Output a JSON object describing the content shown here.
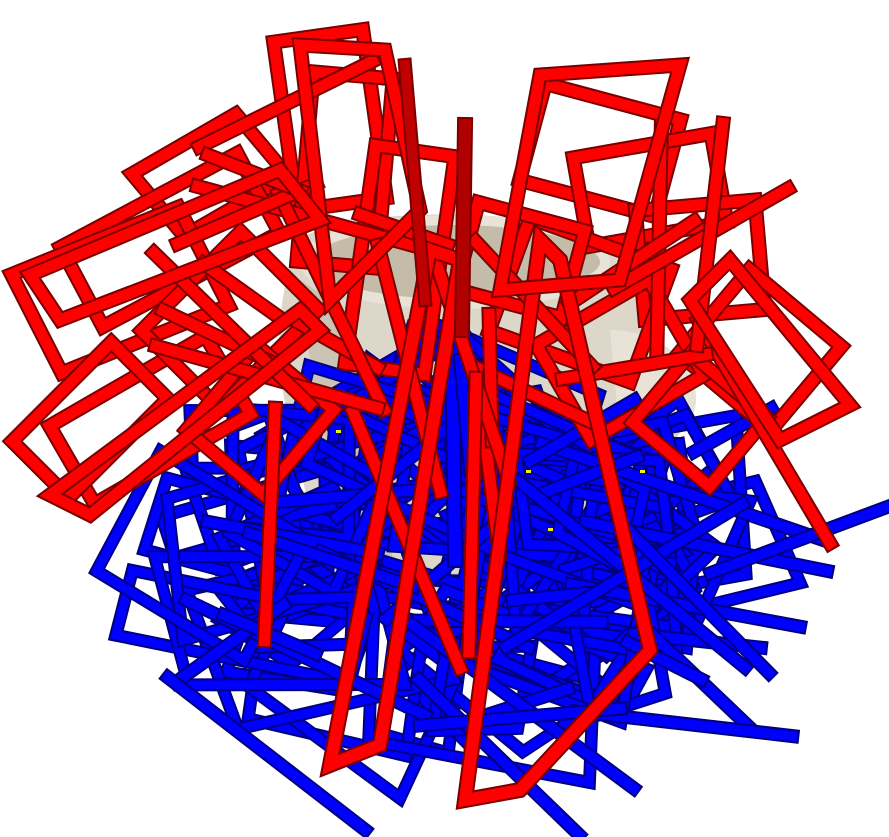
{
  "scene": {
    "background": "#ffffff",
    "vessel": {
      "body_color": "#d9d3c4",
      "rim_color": "#e8e3d6",
      "inner_color": "#c4bca8",
      "shade_color": "#a89f8a"
    },
    "frame_groups": [
      {
        "name": "upper-red-frames",
        "color": "#ff0000",
        "shade": "#b00000",
        "dark": "#7a0000"
      },
      {
        "name": "lower-blue-frames",
        "color": "#0000ff",
        "shade": "#0000c8",
        "dark": "#000080"
      }
    ],
    "particle_color": "#f2f200"
  }
}
